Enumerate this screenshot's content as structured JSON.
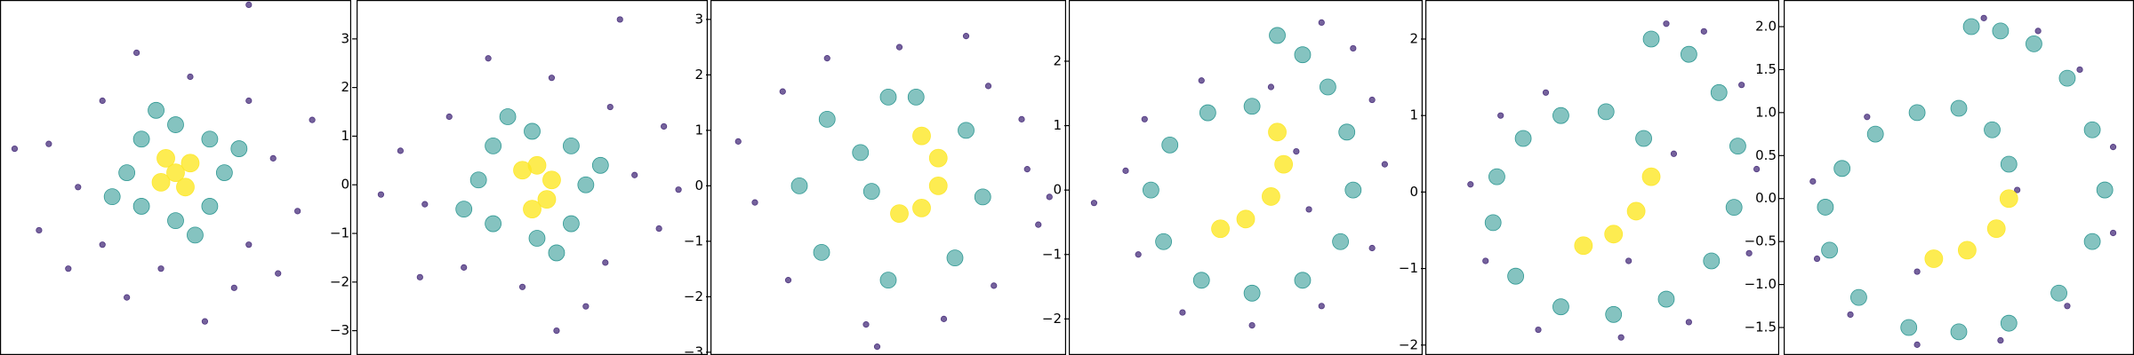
{
  "chart_data": [
    {
      "type": "scatter",
      "xlim": [
        -3.6,
        3.6
      ],
      "ylim": [
        -3.8,
        3.6
      ],
      "series": [
        {
          "color": "#472d7b",
          "x": [
            2,
            -2,
            0.3,
            -0.3,
            1.5,
            -1.5,
            1.5,
            -1.5,
            2.5,
            -2.6,
            1.2,
            -0.8,
            2.8,
            -2.2,
            1.5,
            -3.3,
            0.6,
            -1.0,
            2.1,
            -2.8
          ],
          "y": [
            0.3,
            -0.3,
            2,
            -2,
            1.5,
            1.5,
            -1.5,
            -1.5,
            -0.8,
            0.6,
            -2.4,
            2.5,
            1.1,
            -2.0,
            3.5,
            0.5,
            -3.1,
            -2.6,
            -2.1,
            -1.2
          ]
        },
        {
          "color": "#21918c",
          "x": [
            1,
            -1,
            0,
            0,
            0.7,
            -0.7,
            0.7,
            -0.7,
            1.3,
            -1.3,
            0.4,
            -0.4
          ],
          "y": [
            0,
            0,
            1,
            -1,
            0.7,
            0.7,
            -0.7,
            -0.7,
            0.5,
            -0.5,
            -1.3,
            1.3
          ]
        },
        {
          "color": "#fde725",
          "x": [
            0,
            0.3,
            -0.3,
            0.2,
            -0.2
          ],
          "y": [
            0,
            0.2,
            -0.2,
            -0.3,
            0.3
          ]
        }
      ]
    },
    {
      "type": "scatter",
      "xlim": [
        -3.6,
        3.6
      ],
      "ylim": [
        -3.5,
        3.8
      ],
      "yticks": [
        {
          "value": -3,
          "label": "−3"
        },
        {
          "value": -2,
          "label": "−2"
        },
        {
          "value": -1,
          "label": "−1"
        },
        0,
        1,
        2,
        3
      ],
      "series": [
        {
          "color": "#472d7b",
          "x": [
            2.1,
            -2.2,
            0.4,
            -0.2,
            1.6,
            -1.7,
            1.5,
            -1.4,
            2.6,
            -2.7,
            1.1,
            -0.9,
            2.7,
            -2.3,
            1.8,
            -3.1,
            0.5,
            3.0
          ],
          "y": [
            0.2,
            -0.4,
            2.2,
            -2.1,
            1.6,
            1.4,
            -1.6,
            -1.7,
            -0.9,
            0.7,
            -2.5,
            2.6,
            1.2,
            -1.9,
            3.4,
            -0.2,
            -3.0,
            -0.1
          ]
        },
        {
          "color": "#21918c",
          "x": [
            1.1,
            -1.1,
            0,
            0.1,
            0.8,
            -0.8,
            0.8,
            -0.8,
            1.4,
            -1.4,
            0.5,
            -0.5
          ],
          "y": [
            0,
            0.1,
            1.1,
            -1.1,
            0.8,
            0.8,
            -0.8,
            -0.8,
            0.4,
            -0.5,
            -1.4,
            1.4
          ]
        },
        {
          "color": "#fde725",
          "x": [
            0.1,
            0.4,
            0.3,
            0,
            -0.2
          ],
          "y": [
            0.4,
            0.1,
            -0.3,
            -0.5,
            0.3
          ]
        }
      ]
    },
    {
      "type": "scatter",
      "xlim": [
        -3.2,
        3.2
      ],
      "ylim": [
        -3.05,
        3.35
      ],
      "yticks": [
        {
          "value": -3,
          "label": "−3"
        },
        {
          "value": -2,
          "label": "−2"
        },
        {
          "value": -1,
          "label": "−1"
        },
        0,
        1,
        2,
        3
      ],
      "series": [
        {
          "color": "#472d7b",
          "x": [
            2.5,
            -2.4,
            0.2,
            -0.4,
            1.8,
            -1.9,
            1.9,
            -1.8,
            2.7,
            -2.7,
            1.0,
            -1.1,
            2.4,
            1.4,
            -0.2,
            2.9
          ],
          "y": [
            0.3,
            -0.3,
            2.5,
            -2.5,
            1.8,
            1.7,
            -1.8,
            -1.7,
            -0.7,
            0.8,
            -2.4,
            2.3,
            1.2,
            2.7,
            -2.9,
            -0.2
          ]
        },
        {
          "color": "#21918c",
          "x": [
            0,
            -1.1,
            -1.6,
            -1.2,
            0,
            1.2,
            1.7,
            1.4,
            0.5,
            -0.5,
            -0.3
          ],
          "y": [
            1.6,
            1.2,
            0,
            -1.2,
            -1.7,
            -1.3,
            -0.2,
            1.0,
            1.6,
            0.6,
            -0.1
          ]
        },
        {
          "color": "#fde725",
          "x": [
            0.6,
            0.9,
            0.9,
            0.6,
            0.2
          ],
          "y": [
            0.9,
            0.5,
            0,
            -0.4,
            -0.5
          ]
        }
      ]
    },
    {
      "type": "scatter",
      "xlim": [
        -2.8,
        2.8
      ],
      "ylim": [
        -2.56,
        2.95
      ],
      "yticks": [
        {
          "value": -2,
          "label": "−2"
        },
        {
          "value": -1,
          "label": "−1"
        },
        0,
        1,
        2
      ],
      "series": [
        {
          "color": "#472d7b",
          "x": [
            -1.9,
            -1.7,
            -1.0,
            0.1,
            1.2,
            2.0,
            2.2,
            2.0,
            1.2,
            0.4,
            -0.7,
            -1.6,
            -2.4,
            1.7,
            0.8,
            1.0
          ],
          "y": [
            0.3,
            -1.0,
            -1.9,
            -2.1,
            -1.8,
            -0.9,
            0.4,
            1.4,
            2.6,
            1.6,
            1.7,
            1.1,
            -0.2,
            2.2,
            0.6,
            -0.3
          ]
        },
        {
          "color": "#21918c",
          "x": [
            0.1,
            -0.6,
            -1.2,
            -1.5,
            -1.3,
            -0.7,
            0.1,
            0.9,
            1.5,
            1.7,
            1.6,
            1.3,
            0.9,
            0.5
          ],
          "y": [
            1.3,
            1.2,
            0.7,
            0,
            -0.8,
            -1.4,
            -1.6,
            -1.4,
            -0.8,
            0,
            0.9,
            1.6,
            2.1,
            2.4
          ]
        },
        {
          "color": "#fde725",
          "x": [
            -0.4,
            0,
            0.4,
            0.6,
            0.5
          ],
          "y": [
            -0.6,
            -0.45,
            -0.1,
            0.4,
            0.9
          ]
        }
      ]
    },
    {
      "type": "scatter",
      "xlim": [
        -2.4,
        2.3
      ],
      "ylim": [
        -2.13,
        2.51
      ],
      "yticks": [
        {
          "value": -2,
          "label": "−2"
        },
        {
          "value": -1,
          "label": "−1"
        },
        0,
        1,
        2
      ],
      "series": [
        {
          "color": "#472d7b",
          "x": [
            -1.8,
            -1.6,
            -0.9,
            0.2,
            1.1,
            1.9,
            2.0,
            1.8,
            1.3,
            0.8,
            -0.8,
            -1.4,
            0.3,
            0.9
          ],
          "y": [
            0.1,
            -0.9,
            -1.8,
            -1.9,
            -1.7,
            -0.8,
            0.3,
            1.4,
            2.1,
            2.2,
            1.3,
            1.0,
            -0.9,
            0.5
          ]
        },
        {
          "color": "#21918c",
          "x": [
            0.5,
            0,
            -0.6,
            -1.1,
            -1.45,
            -1.5,
            -1.2,
            -0.6,
            0.1,
            0.8,
            1.4,
            1.7,
            1.75,
            1.5,
            1.1,
            0.6
          ],
          "y": [
            0.7,
            1.05,
            1.0,
            0.7,
            0.2,
            -0.4,
            -1.1,
            -1.5,
            -1.6,
            -1.4,
            -0.9,
            -0.2,
            0.6,
            1.3,
            1.8,
            2.0
          ]
        },
        {
          "color": "#fde725",
          "x": [
            -0.3,
            0.1,
            0.4,
            0.6
          ],
          "y": [
            -0.7,
            -0.55,
            -0.25,
            0.2
          ]
        }
      ]
    },
    {
      "type": "scatter",
      "xlim": [
        -2.1,
        2.1
      ],
      "ylim": [
        -1.82,
        2.31
      ],
      "yticks": [
        {
          "value": -1.5,
          "label": "−1.5"
        },
        {
          "value": -1,
          "label": "−1.0"
        },
        {
          "value": -0.5,
          "label": "−0.5"
        },
        {
          "value": 0,
          "label": "0.0"
        },
        {
          "value": 0.5,
          "label": "0.5"
        },
        {
          "value": 1,
          "label": "1.0"
        },
        {
          "value": 1.5,
          "label": "1.5"
        },
        {
          "value": 2,
          "label": "2.0"
        }
      ],
      "series": [
        {
          "color": "#472d7b",
          "x": [
            -1.75,
            -1.7,
            -1.3,
            -0.5,
            0.5,
            1.3,
            1.85,
            1.85,
            1.45,
            0.95,
            0.3,
            -1.1,
            0.7,
            -0.5
          ],
          "y": [
            0.2,
            -0.7,
            -1.35,
            -1.7,
            -1.65,
            -1.25,
            -0.4,
            0.6,
            1.5,
            1.95,
            2.1,
            0.95,
            0.1,
            -0.85
          ]
        },
        {
          "color": "#21918c",
          "x": [
            0.6,
            0.4,
            0,
            -0.5,
            -1.0,
            -1.4,
            -1.6,
            -1.55,
            -1.2,
            -0.6,
            0,
            0.6,
            1.2,
            1.6,
            1.75,
            1.6,
            1.3,
            0.9,
            0.5,
            0.15
          ],
          "y": [
            0.4,
            0.8,
            1.05,
            1.0,
            0.75,
            0.35,
            -0.1,
            -0.6,
            -1.15,
            -1.5,
            -1.55,
            -1.45,
            -1.1,
            -0.5,
            0.1,
            0.8,
            1.4,
            1.8,
            1.95,
            2.0
          ]
        },
        {
          "color": "#fde725",
          "x": [
            -0.3,
            0.1,
            0.45,
            0.6
          ],
          "y": [
            -0.7,
            -0.6,
            -0.35,
            0.0
          ]
        }
      ]
    }
  ]
}
